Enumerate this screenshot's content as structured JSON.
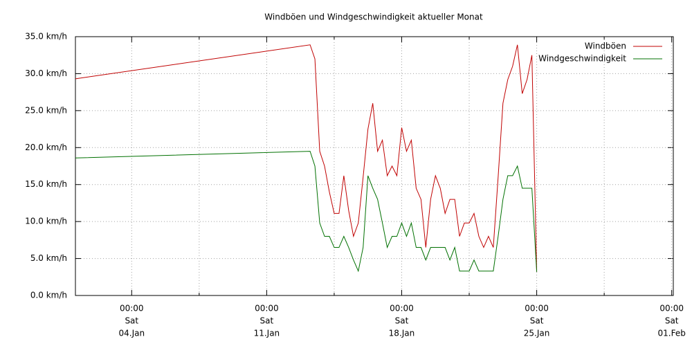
{
  "chart_data": {
    "type": "line",
    "title": "Windböen und Windgeschwindigkeit aktueller Monat",
    "x": [
      "01.Jan 02:00",
      "13.Jan 06:00",
      "13.Jan 12:00",
      "13.Jan 18:00",
      "14.Jan 00:00",
      "14.Jan 06:00",
      "14.Jan 12:00",
      "14.Jan 18:00",
      "15.Jan 00:00",
      "15.Jan 06:00",
      "15.Jan 12:00",
      "15.Jan 18:00",
      "16.Jan 00:00",
      "16.Jan 06:00",
      "16.Jan 12:00",
      "16.Jan 18:00",
      "17.Jan 00:00",
      "17.Jan 06:00",
      "17.Jan 12:00",
      "17.Jan 18:00",
      "18.Jan 00:00",
      "18.Jan 06:00",
      "18.Jan 12:00",
      "18.Jan 18:00",
      "19.Jan 00:00",
      "19.Jan 06:00",
      "19.Jan 12:00",
      "19.Jan 18:00",
      "20.Jan 00:00",
      "20.Jan 06:00",
      "20.Jan 12:00",
      "20.Jan 18:00",
      "21.Jan 00:00",
      "21.Jan 06:00",
      "21.Jan 12:00",
      "21.Jan 18:00",
      "22.Jan 00:00",
      "22.Jan 06:00",
      "22.Jan 12:00",
      "22.Jan 18:00",
      "23.Jan 00:00",
      "23.Jan 06:00",
      "23.Jan 12:00",
      "23.Jan 18:00",
      "24.Jan 00:00",
      "24.Jan 06:00",
      "24.Jan 12:00",
      "24.Jan 18:00",
      "25.Jan 00:00"
    ],
    "series": [
      {
        "name": "Windböen",
        "color": "#c00000",
        "values": [
          29.3,
          33.9,
          32,
          19.5,
          17.5,
          14,
          11.1,
          11.1,
          16.2,
          11.5,
          8,
          9.8,
          16,
          22.5,
          26,
          19.5,
          21,
          16.2,
          17.5,
          16.2,
          22.7,
          19.5,
          21,
          14.5,
          13,
          6.5,
          13,
          16.2,
          14.5,
          11.1,
          13,
          13,
          8,
          9.8,
          9.8,
          11.1,
          8,
          6.5,
          8,
          6.5,
          16,
          26,
          29.2,
          31,
          33.9,
          27.3,
          29.2,
          32.5,
          3.2
        ]
      },
      {
        "name": "Windgeschwindigkeit",
        "color": "#007000",
        "values": [
          18.6,
          19.5,
          17.5,
          9.8,
          8,
          8,
          6.5,
          6.5,
          8,
          6.5,
          4.8,
          3.3,
          6.5,
          16.2,
          14.5,
          13,
          9.8,
          6.5,
          8,
          8,
          9.8,
          8,
          9.8,
          6.5,
          6.5,
          4.8,
          6.5,
          6.5,
          6.5,
          6.5,
          4.8,
          6.5,
          3.3,
          3.3,
          3.3,
          4.8,
          3.3,
          3.3,
          3.3,
          3.3,
          8,
          13,
          16.2,
          16.2,
          17.5,
          14.5,
          14.5,
          14.5,
          3.2
        ]
      }
    ],
    "xlim": [
      "01.Jan 02:00",
      "01.Feb 02:00"
    ],
    "xticks": [
      {
        "value": "04.Jan 00:00",
        "label": [
          "00:00",
          "Sat",
          "04.Jan"
        ]
      },
      {
        "value": "11.Jan 00:00",
        "label": [
          "00:00",
          "Sat",
          "11.Jan"
        ]
      },
      {
        "value": "18.Jan 00:00",
        "label": [
          "00:00",
          "Sat",
          "18.Jan"
        ]
      },
      {
        "value": "25.Jan 00:00",
        "label": [
          "00:00",
          "Sat",
          "25.Jan"
        ]
      },
      {
        "value": "01.Feb 00:00",
        "label": [
          "00:00",
          "Sat",
          "01.Feb"
        ]
      }
    ],
    "xminor": [
      "07.Jan 12:00",
      "14.Jan 12:00",
      "21.Jan 12:00",
      "28.Jan 12:00"
    ],
    "ylim": [
      0,
      35
    ],
    "yticks": [
      {
        "value": 0,
        "label": "0.0 km/h"
      },
      {
        "value": 5,
        "label": "5.0 km/h"
      },
      {
        "value": 10,
        "label": "10.0 km/h"
      },
      {
        "value": 15,
        "label": "15.0 km/h"
      },
      {
        "value": 20,
        "label": "20.0 km/h"
      },
      {
        "value": 25,
        "label": "25.0 km/h"
      },
      {
        "value": 30,
        "label": "30.0 km/h"
      },
      {
        "value": 35,
        "label": "35.0 km/h"
      }
    ],
    "grid": true,
    "legend": "upper right"
  }
}
